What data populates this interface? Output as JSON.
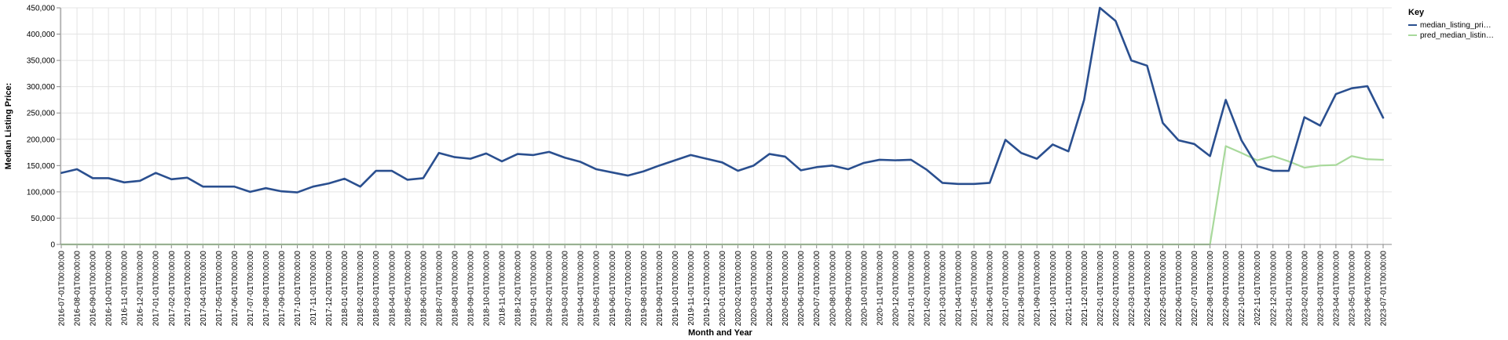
{
  "chart_data": {
    "type": "line",
    "xlabel": "Month and Year",
    "ylabel": "Median Listing Price:",
    "ylim": [
      0,
      450000
    ],
    "yticks": [
      "0",
      "50,000",
      "100,000",
      "150,000",
      "200,000",
      "250,000",
      "300,000",
      "350,000",
      "400,000",
      "450,000"
    ],
    "grid": true,
    "legend": {
      "title": "Key",
      "placement": "top-right"
    },
    "categories": [
      "2016-07-01T00:00:00",
      "2016-08-01T00:00:00",
      "2016-09-01T00:00:00",
      "2016-10-01T00:00:00",
      "2016-11-01T00:00:00",
      "2016-12-01T00:00:00",
      "2017-01-01T00:00:00",
      "2017-02-01T00:00:00",
      "2017-03-01T00:00:00",
      "2017-04-01T00:00:00",
      "2017-05-01T00:00:00",
      "2017-06-01T00:00:00",
      "2017-07-01T00:00:00",
      "2017-08-01T00:00:00",
      "2017-09-01T00:00:00",
      "2017-10-01T00:00:00",
      "2017-11-01T00:00:00",
      "2017-12-01T00:00:00",
      "2018-01-01T00:00:00",
      "2018-02-01T00:00:00",
      "2018-03-01T00:00:00",
      "2018-04-01T00:00:00",
      "2018-05-01T00:00:00",
      "2018-06-01T00:00:00",
      "2018-07-01T00:00:00",
      "2018-08-01T00:00:00",
      "2018-09-01T00:00:00",
      "2018-10-01T00:00:00",
      "2018-11-01T00:00:00",
      "2018-12-01T00:00:00",
      "2019-01-01T00:00:00",
      "2019-02-01T00:00:00",
      "2019-03-01T00:00:00",
      "2019-04-01T00:00:00",
      "2019-05-01T00:00:00",
      "2019-06-01T00:00:00",
      "2019-07-01T00:00:00",
      "2019-08-01T00:00:00",
      "2019-09-01T00:00:00",
      "2019-10-01T00:00:00",
      "2019-11-01T00:00:00",
      "2019-12-01T00:00:00",
      "2020-01-01T00:00:00",
      "2020-02-01T00:00:00",
      "2020-03-01T00:00:00",
      "2020-04-01T00:00:00",
      "2020-05-01T00:00:00",
      "2020-06-01T00:00:00",
      "2020-07-01T00:00:00",
      "2020-08-01T00:00:00",
      "2020-09-01T00:00:00",
      "2020-10-01T00:00:00",
      "2020-11-01T00:00:00",
      "2020-12-01T00:00:00",
      "2021-01-01T00:00:00",
      "2021-02-01T00:00:00",
      "2021-03-01T00:00:00",
      "2021-04-01T00:00:00",
      "2021-05-01T00:00:00",
      "2021-06-01T00:00:00",
      "2021-07-01T00:00:00",
      "2021-08-01T00:00:00",
      "2021-09-01T00:00:00",
      "2021-10-01T00:00:00",
      "2021-11-01T00:00:00",
      "2021-12-01T00:00:00",
      "2022-01-01T00:00:00",
      "2022-02-01T00:00:00",
      "2022-03-01T00:00:00",
      "2022-04-01T00:00:00",
      "2022-05-01T00:00:00",
      "2022-06-01T00:00:00",
      "2022-07-01T00:00:00",
      "2022-08-01T00:00:00",
      "2022-09-01T00:00:00",
      "2022-10-01T00:00:00",
      "2022-11-01T00:00:00",
      "2022-12-01T00:00:00",
      "2023-01-01T00:00:00",
      "2023-02-01T00:00:00",
      "2023-03-01T00:00:00",
      "2023-04-01T00:00:00",
      "2023-05-01T00:00:00",
      "2023-06-01T00:00:00",
      "2023-07-01T00:00:00"
    ],
    "series": [
      {
        "name": "median_listing_pri…",
        "color": "#2a4f8f",
        "values": [
          136000,
          143000,
          126000,
          126000,
          118000,
          121000,
          136000,
          124000,
          127000,
          110000,
          110000,
          110000,
          100000,
          107000,
          101000,
          99000,
          110000,
          116000,
          125000,
          110000,
          140000,
          140000,
          123000,
          126000,
          174000,
          166000,
          163000,
          173000,
          158000,
          172000,
          170000,
          176000,
          165000,
          157000,
          143000,
          137000,
          131000,
          139000,
          150000,
          160000,
          170000,
          163000,
          156000,
          140000,
          150000,
          172000,
          167000,
          141000,
          147000,
          150000,
          143000,
          155000,
          161000,
          160000,
          161000,
          142000,
          117000,
          115000,
          115000,
          117000,
          199000,
          174000,
          163000,
          190000,
          177000,
          275000,
          450000,
          425000,
          350000,
          340000,
          231000,
          198000,
          191000,
          168000,
          275000,
          198000,
          149000,
          140000,
          140000,
          242000,
          226000,
          286000,
          297000,
          301000,
          241000
        ]
      },
      {
        "name": "pred_median_listin…",
        "color": "#a8d99b",
        "values": [
          0,
          0,
          0,
          0,
          0,
          0,
          0,
          0,
          0,
          0,
          0,
          0,
          0,
          0,
          0,
          0,
          0,
          0,
          0,
          0,
          0,
          0,
          0,
          0,
          0,
          0,
          0,
          0,
          0,
          0,
          0,
          0,
          0,
          0,
          0,
          0,
          0,
          0,
          0,
          0,
          0,
          0,
          0,
          0,
          0,
          0,
          0,
          0,
          0,
          0,
          0,
          0,
          0,
          0,
          0,
          0,
          0,
          0,
          0,
          0,
          0,
          0,
          0,
          0,
          0,
          0,
          0,
          0,
          0,
          0,
          0,
          0,
          0,
          0,
          187000,
          174000,
          160000,
          168000,
          158000,
          146000,
          150000,
          151000,
          168000,
          162000,
          161000
        ]
      }
    ]
  }
}
